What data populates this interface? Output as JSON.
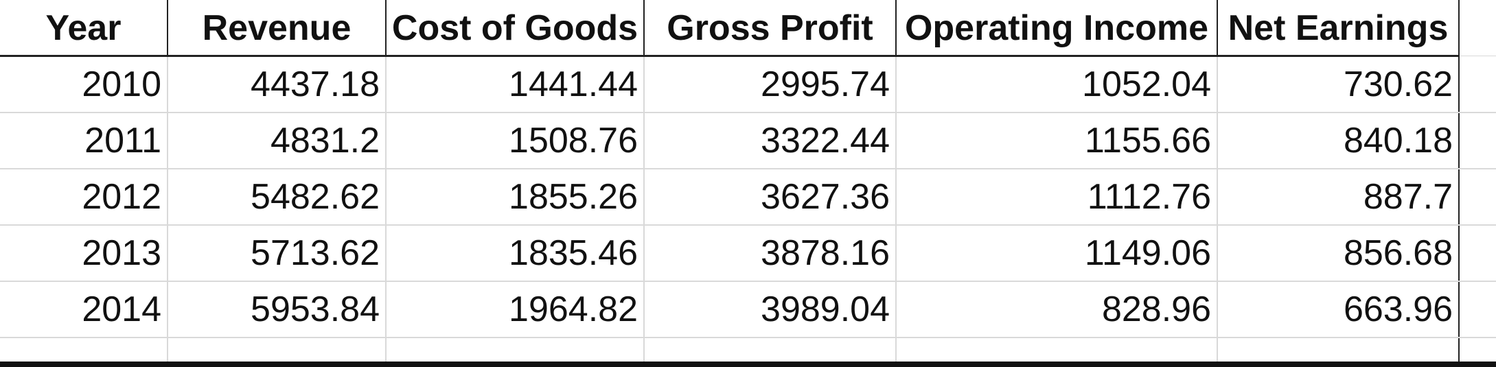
{
  "chart_data": {
    "type": "table",
    "columns": [
      "Year",
      "Revenue",
      "Cost of Goods",
      "Gross Profit",
      "Operating Income",
      "Net Earnings"
    ],
    "rows": [
      [
        "2010",
        "4437.18",
        "1441.44",
        "2995.74",
        "1052.04",
        "730.62"
      ],
      [
        "2011",
        "4831.2",
        "1508.76",
        "3322.44",
        "1155.66",
        "840.18"
      ],
      [
        "2012",
        "5482.62",
        "1855.26",
        "3627.36",
        "1112.76",
        "887.7"
      ],
      [
        "2013",
        "5713.62",
        "1835.46",
        "3878.16",
        "1149.06",
        "856.68"
      ],
      [
        "2014",
        "5953.84",
        "1964.82",
        "3989.04",
        "828.96",
        "663.96"
      ]
    ]
  }
}
